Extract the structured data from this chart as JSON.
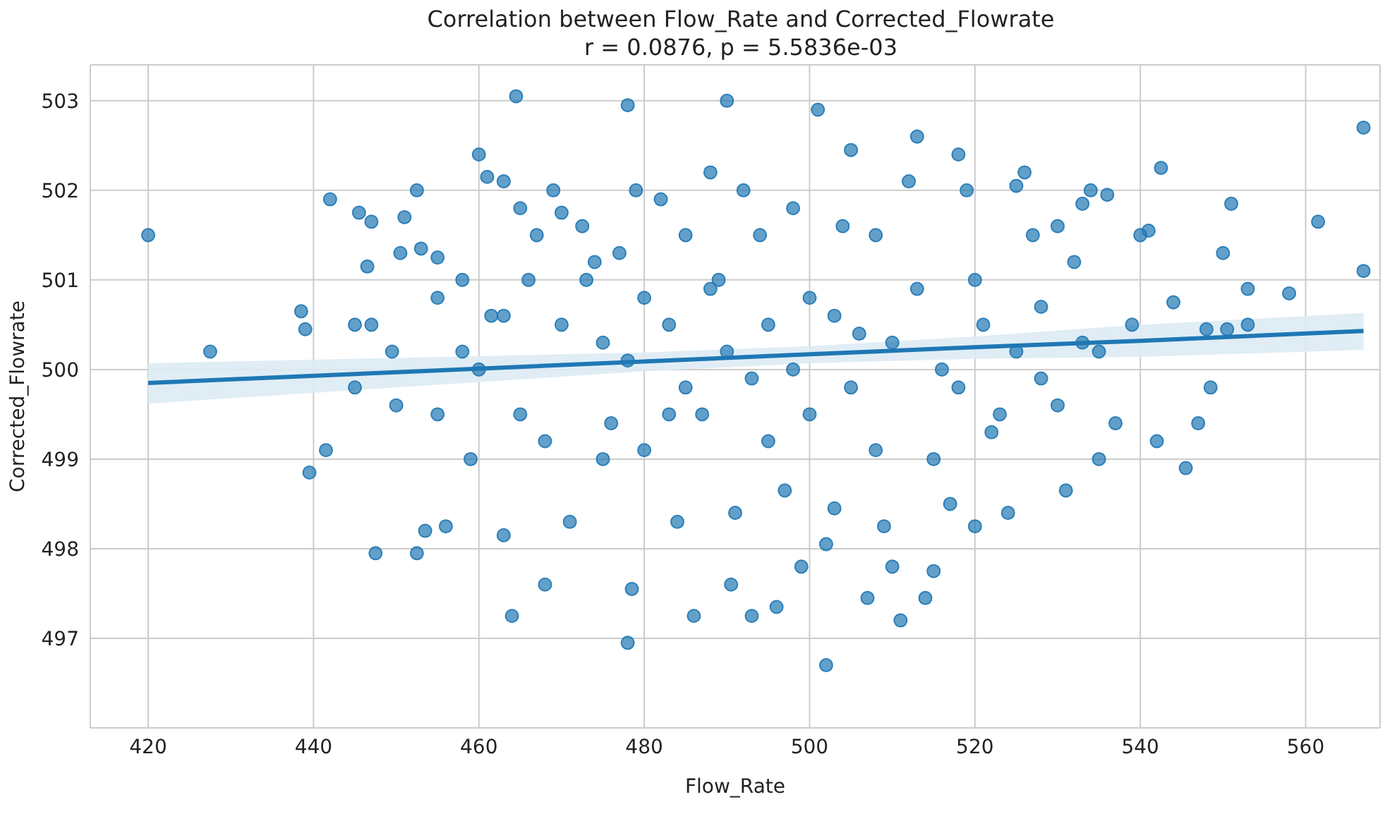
{
  "chart_data": {
    "type": "scatter",
    "title": "Correlation between Flow_Rate and Corrected_Flowrate",
    "subtitle": "r = 0.0876, p = 5.5836e-03",
    "xlabel": "Flow_Rate",
    "ylabel": "Corrected_Flowrate",
    "xlim": [
      413,
      569
    ],
    "ylim": [
      496.0,
      503.4
    ],
    "xticks": [
      420,
      440,
      460,
      480,
      500,
      520,
      540,
      560
    ],
    "yticks": [
      497,
      498,
      499,
      500,
      501,
      502,
      503
    ],
    "grid": true,
    "marker": "circle",
    "series": [
      {
        "type": "scatter",
        "color": "#1f77b4",
        "x": [
          420,
          427.5,
          438.5,
          439,
          439.5,
          442,
          441.5,
          445.5,
          447,
          446.5,
          445,
          447,
          447.5,
          449.5,
          450.5,
          451,
          452.5,
          453,
          452.5,
          453.5,
          455,
          455,
          456,
          458,
          459,
          460,
          461,
          461.5,
          463,
          463,
          464,
          464.5,
          465,
          466,
          467,
          468,
          469,
          470,
          471,
          472.5,
          474,
          475,
          476,
          477,
          478,
          478,
          478.5,
          479,
          480,
          482,
          483,
          484,
          485,
          486,
          487,
          488,
          489,
          490,
          490.5,
          491,
          492,
          493,
          494,
          495,
          496,
          497,
          498,
          499,
          500,
          501,
          502,
          502,
          503,
          504,
          505,
          506,
          507,
          508,
          509,
          510,
          511,
          512,
          513,
          514,
          515,
          516,
          517,
          518,
          519,
          520,
          521,
          522,
          524,
          525,
          526,
          527,
          528,
          530,
          531,
          532,
          533,
          534,
          535,
          536,
          537,
          539,
          540,
          541,
          542,
          542.5,
          544,
          545.5,
          547,
          548,
          548.5,
          550,
          550.5,
          551,
          553,
          553,
          558,
          561.5,
          567,
          567,
          460,
          465,
          470,
          475,
          480,
          485,
          490,
          495,
          500,
          505,
          510,
          515,
          520,
          525,
          530,
          458,
          468,
          478,
          488,
          498,
          508,
          518,
          528,
          463,
          473,
          483,
          493,
          503,
          513,
          523,
          533,
          450,
          455,
          445,
          535
        ],
        "values": [
          501.5,
          500.2,
          500.65,
          500.45,
          498.85,
          501.9,
          499.1,
          501.75,
          501.65,
          501.15,
          500.5,
          500.5,
          497.95,
          500.2,
          501.3,
          501.7,
          502.0,
          501.35,
          497.95,
          498.2,
          501.25,
          499.5,
          498.25,
          500.2,
          499.0,
          502.4,
          502.15,
          500.6,
          502.1,
          498.15,
          497.25,
          503.05,
          501.8,
          501.0,
          501.5,
          497.6,
          502.0,
          501.75,
          498.3,
          501.6,
          501.2,
          500.3,
          499.4,
          501.3,
          502.95,
          496.95,
          497.55,
          502.0,
          499.1,
          501.9,
          500.5,
          498.3,
          501.5,
          497.25,
          499.5,
          502.2,
          501.0,
          503.0,
          497.6,
          498.4,
          502.0,
          497.25,
          501.5,
          500.5,
          497.35,
          498.65,
          501.8,
          497.8,
          499.5,
          502.9,
          496.7,
          498.05,
          498.45,
          501.6,
          502.45,
          500.4,
          497.45,
          501.5,
          498.25,
          497.8,
          497.2,
          502.1,
          502.6,
          497.45,
          497.75,
          500.0,
          498.5,
          502.4,
          502.0,
          498.25,
          500.5,
          499.3,
          498.4,
          502.05,
          502.2,
          501.5,
          499.9,
          501.6,
          498.65,
          501.2,
          501.85,
          502.0,
          500.2,
          501.95,
          499.4,
          500.5,
          501.5,
          501.55,
          499.2,
          502.25,
          500.75,
          498.9,
          499.4,
          500.45,
          499.8,
          501.3,
          500.45,
          501.85,
          500.9,
          500.5,
          500.85,
          501.65,
          502.7,
          501.1,
          500.0,
          499.5,
          500.5,
          499.0,
          500.8,
          499.8,
          500.2,
          499.2,
          500.8,
          499.8,
          500.3,
          499.0,
          501.0,
          500.2,
          499.6,
          501.0,
          499.2,
          500.1,
          500.9,
          500.0,
          499.1,
          499.8,
          500.7,
          500.6,
          501.0,
          499.5,
          499.9,
          500.6,
          500.9,
          499.5,
          500.3,
          499.6,
          500.8,
          499.8,
          499.0
        ]
      },
      {
        "type": "line",
        "marker": "none",
        "color": "#1f77b4",
        "x": [
          420,
          450,
          480,
          500,
          520,
          540,
          567
        ],
        "values": [
          499.85,
          499.97,
          500.09,
          500.17,
          500.25,
          500.32,
          500.43
        ],
        "lower": [
          499.62,
          499.8,
          499.98,
          500.07,
          500.12,
          500.14,
          500.22
        ],
        "upper": [
          500.07,
          500.13,
          500.19,
          500.26,
          500.37,
          500.5,
          500.63
        ]
      }
    ]
  }
}
